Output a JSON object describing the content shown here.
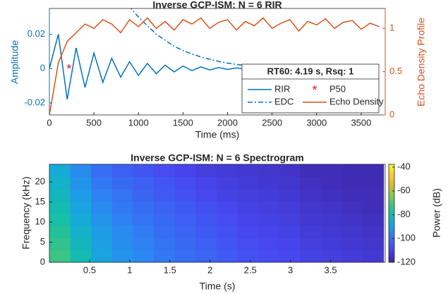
{
  "chart_data": [
    {
      "type": "line",
      "title": "Inverse GCP-ISM: N = 6 RIR",
      "xlabel": "Time (ms)",
      "ylabel": "Amplitude",
      "y2label": "Echo Density Profile",
      "annotation": "RT60: 4.19 s, Rsq: 1",
      "xlim": [
        0,
        3770
      ],
      "xticks": [
        0,
        500,
        1000,
        1500,
        2000,
        2500,
        3000,
        3500
      ],
      "ylim": [
        -0.027,
        0.035
      ],
      "yticks": [
        -0.02,
        0,
        0.02
      ],
      "y2lim": [
        0,
        1.23
      ],
      "y2ticks": [
        0,
        0.5,
        1
      ],
      "ycolor": "#0072bd",
      "y2color": "#d95319",
      "grid": false,
      "legend": "lower right",
      "x": [
        0,
        100,
        200,
        300,
        400,
        500,
        600,
        700,
        800,
        900,
        1000,
        1100,
        1200,
        1300,
        1400,
        1500,
        1600,
        1700,
        1800,
        1900,
        2000,
        2100,
        2200,
        2300,
        2400,
        2500,
        2600,
        2700,
        2800,
        2900,
        3000,
        3100,
        3200,
        3300,
        3400,
        3500,
        3600,
        3700
      ],
      "series": [
        {
          "name": "RIR",
          "color": "#0072bd",
          "style": "solid",
          "values": [
            0,
            0.02,
            -0.018,
            0.012,
            -0.011,
            0.009,
            -0.008,
            0.006,
            -0.005,
            0.004,
            -0.004,
            0.003,
            -0.003,
            0.002,
            -0.002,
            0.0015,
            -0.0012,
            0.001,
            -0.0008,
            0.0006,
            -0.0005,
            0.0004,
            -0.0004,
            0.0003,
            -0.0003,
            0.0002,
            -0.0002,
            0.0002,
            -0.0001,
            0.0001,
            -0.0001,
            0.0001,
            -0.0001,
            0.0001,
            -0.0001,
            0.0001,
            -0.0001,
            0.0001
          ]
        },
        {
          "name": "EDC",
          "color": "#0072bd",
          "style": "dashdot",
          "values": [
            1,
            0.6,
            0.4,
            0.27,
            0.18,
            0.12,
            0.085,
            0.06,
            0.045,
            0.036,
            0.03,
            0.025,
            0.02,
            0.0165,
            0.013,
            0.0105,
            0.0085,
            0.0068,
            0.0054,
            0.0042,
            0.0032,
            0.0024,
            0.0018,
            0.0013,
            0.0009,
            0.0006,
            0.0004,
            0.0003,
            0.0002,
            0.0001,
            0,
            0,
            0,
            0,
            0,
            0,
            0,
            0
          ]
        },
        {
          "name": "Echo Density",
          "color": "#d95319",
          "style": "solid",
          "axis": "y2",
          "values": [
            0,
            0.6,
            0.85,
            0.95,
            1.05,
            1.0,
            1.1,
            1.05,
            0.95,
            1.1,
            1.02,
            1.12,
            1.0,
            1.08,
            0.98,
            1.1,
            1.05,
            1.12,
            1.0,
            1.07,
            1.1,
            0.98,
            1.08,
            1.03,
            1.12,
            1.0,
            1.06,
            1.1,
            0.97,
            1.08,
            1.04,
            1.11,
            1.0,
            1.07,
            1.09,
            0.99,
            1.06,
            1.02
          ]
        }
      ],
      "p50": {
        "name": "P50",
        "x": 220,
        "value": 0,
        "color": "#e8141c"
      }
    },
    {
      "type": "heatmap",
      "title": "Inverse GCP-ISM: N = 6 Spectrogram",
      "xlabel": "Time (s)",
      "ylabel": "Frequency (kHz)",
      "colorbar_label": "Power (dB)",
      "colormap": "parula",
      "xlim": [
        0,
        4.18
      ],
      "xticks": [
        0.5,
        1,
        1.5,
        2,
        2.5,
        3,
        3.5
      ],
      "ylim": [
        0,
        24.4
      ],
      "yticks": [
        0,
        5,
        10,
        15,
        20
      ],
      "clim": [
        -120,
        -37.6
      ],
      "cticks": [
        -120,
        -100,
        -80,
        -60,
        -40
      ],
      "x": [
        0.13,
        0.39,
        0.65,
        0.91,
        1.17,
        1.43,
        1.69,
        1.95,
        2.21,
        2.47,
        2.73,
        2.99,
        3.25,
        3.51,
        3.77,
        4.03
      ],
      "y": [
        1.525,
        4.575,
        7.625,
        10.675,
        13.725,
        16.775,
        19.825,
        22.875
      ],
      "values": [
        [
          -72,
          -80,
          -88,
          -92,
          -95,
          -98,
          -100,
          -102,
          -104,
          -106,
          -107,
          -108,
          -110,
          -111,
          -112,
          -113
        ],
        [
          -74,
          -82,
          -89,
          -93,
          -96,
          -99,
          -101,
          -103,
          -105,
          -107,
          -108,
          -109,
          -111,
          -112,
          -113,
          -114
        ],
        [
          -76,
          -84,
          -90,
          -94,
          -97,
          -100,
          -102,
          -104,
          -106,
          -108,
          -109,
          -110,
          -112,
          -113,
          -114,
          -115
        ],
        [
          -78,
          -86,
          -92,
          -96,
          -99,
          -101,
          -103,
          -105,
          -107,
          -109,
          -110,
          -111,
          -113,
          -114,
          -115,
          -116
        ],
        [
          -80,
          -88,
          -94,
          -98,
          -100,
          -102,
          -104,
          -106,
          -108,
          -110,
          -111,
          -112,
          -114,
          -115,
          -116,
          -117
        ],
        [
          -82,
          -90,
          -96,
          -99,
          -102,
          -104,
          -106,
          -108,
          -110,
          -111,
          -112,
          -113,
          -115,
          -116,
          -117,
          -117
        ],
        [
          -84,
          -92,
          -98,
          -101,
          -103,
          -105,
          -107,
          -109,
          -111,
          -112,
          -113,
          -114,
          -116,
          -117,
          -118,
          -118
        ],
        [
          -86,
          -94,
          -100,
          -103,
          -105,
          -107,
          -109,
          -111,
          -112,
          -113,
          -114,
          -115,
          -117,
          -117,
          -118,
          -118
        ]
      ]
    }
  ]
}
